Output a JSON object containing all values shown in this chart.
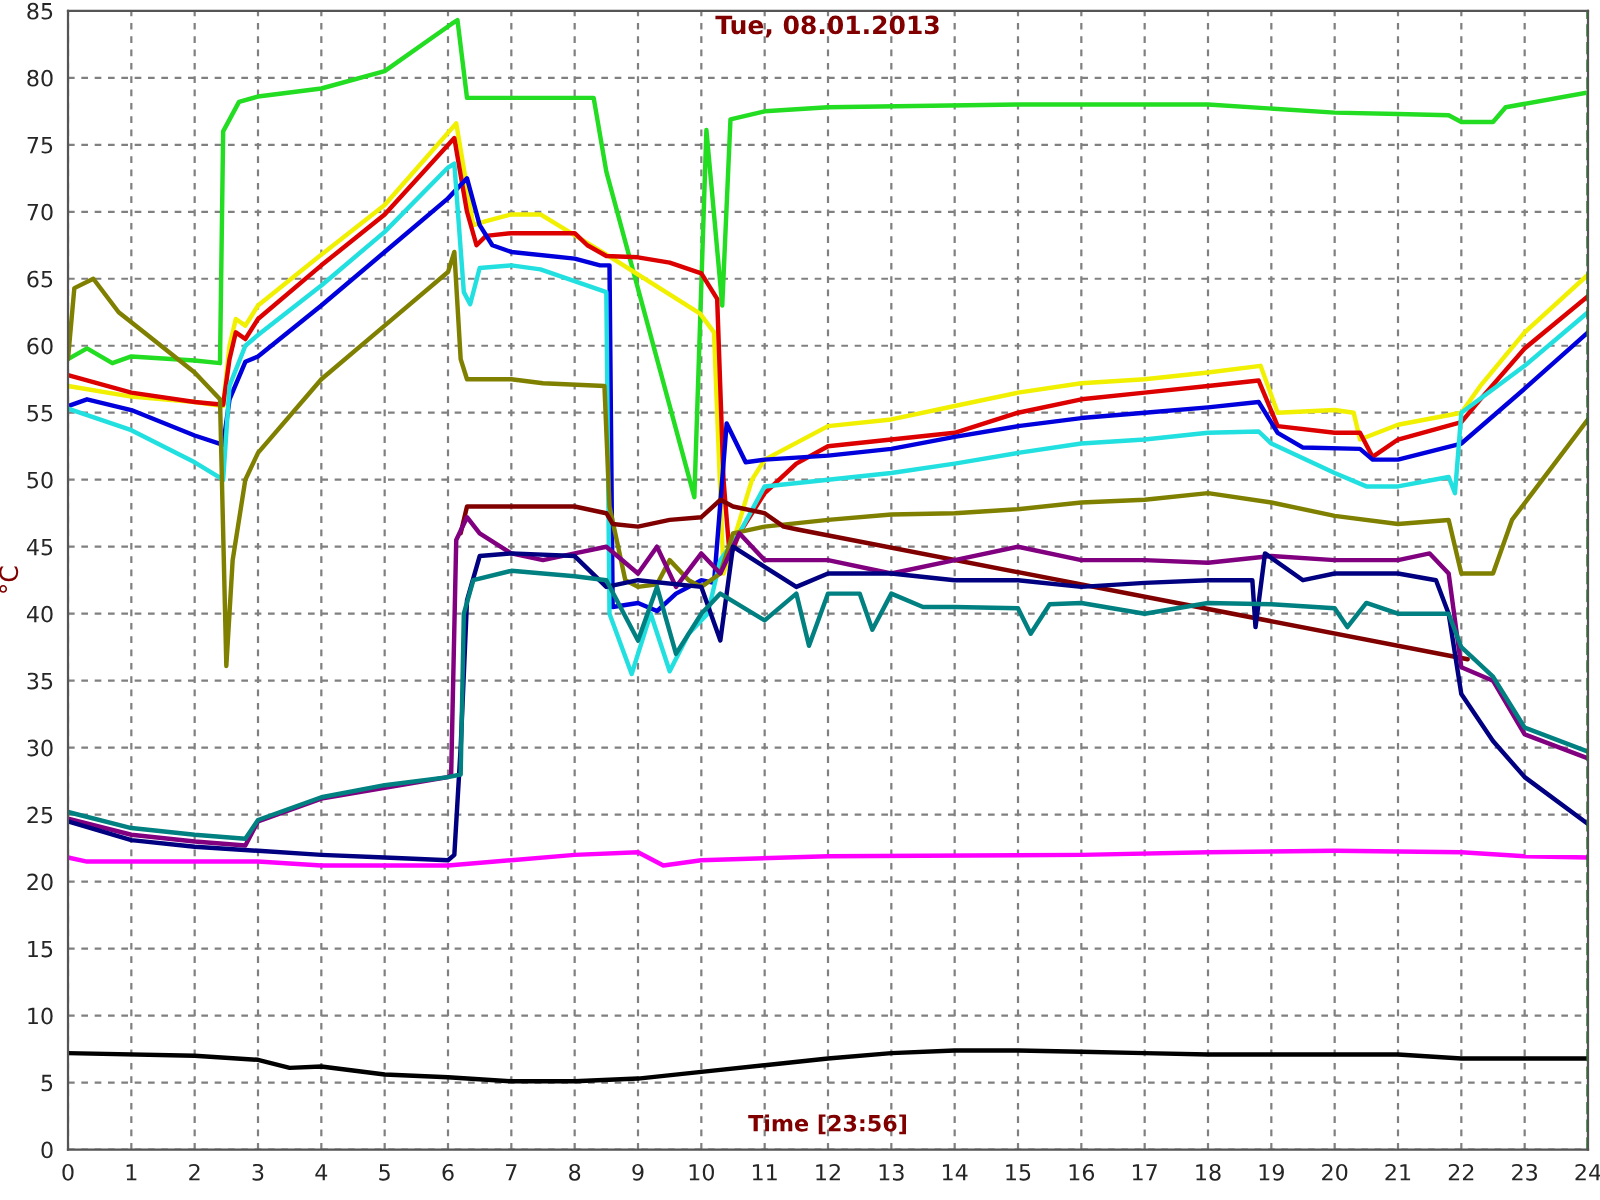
{
  "chart_data": {
    "type": "line",
    "title": "Tue, 08.01.2013",
    "xlabel": "Time [23:56]",
    "ylabel": "°C",
    "xlim": [
      0,
      24
    ],
    "ylim": [
      0,
      85
    ],
    "xticks": [
      0,
      1,
      2,
      3,
      4,
      5,
      6,
      7,
      8,
      9,
      10,
      11,
      12,
      13,
      14,
      15,
      16,
      17,
      18,
      19,
      20,
      21,
      22,
      23,
      24
    ],
    "yticks": [
      0,
      5,
      10,
      15,
      20,
      25,
      30,
      35,
      40,
      45,
      50,
      55,
      60,
      65,
      70,
      75,
      80,
      85
    ],
    "grid": true,
    "legend": false,
    "marker": "none",
    "line_style": "solid",
    "ref_lines": [
      {
        "axis": "x",
        "value": 24,
        "color": "#008000",
        "line_style": "dashed"
      }
    ],
    "series": [
      {
        "color": "#22dd22",
        "x": [
          0,
          0.3,
          0.7,
          1,
          2,
          2.4,
          2.45,
          2.7,
          3,
          4,
          5,
          6.05,
          6.15,
          6.3,
          8.3,
          8.5,
          9.89,
          10.08,
          10.33,
          10.46,
          11,
          12,
          15,
          18,
          20,
          21,
          21.8,
          22,
          22.5,
          22.7,
          24
        ],
        "values": [
          59,
          59.8,
          58.7,
          59.2,
          58.9,
          58.7,
          76,
          78.2,
          78.6,
          79.2,
          80.5,
          84,
          84.3,
          78.5,
          78.5,
          73,
          48.7,
          76.1,
          63,
          76.9,
          77.5,
          77.8,
          78,
          78,
          77.4,
          77.3,
          77.2,
          76.7,
          76.7,
          77.8,
          78.9
        ]
      },
      {
        "color": "#f0f000",
        "x": [
          0,
          1,
          2,
          2.45,
          2.55,
          2.65,
          2.8,
          3,
          4,
          5,
          6.13,
          6.4,
          6.6,
          7,
          7.46,
          8.47,
          9.98,
          10.2,
          10.35,
          10.8,
          11,
          12,
          13,
          14,
          15,
          16,
          17,
          18,
          18.83,
          19.1,
          20,
          20.3,
          20.4,
          21,
          22,
          22.3,
          23,
          24
        ],
        "values": [
          57,
          56.2,
          55.8,
          55.5,
          60,
          62,
          61.5,
          63,
          66.8,
          70.5,
          76.6,
          69,
          69.3,
          69.8,
          69.8,
          66.9,
          62.4,
          61,
          43,
          50,
          51.5,
          54,
          54.5,
          55.5,
          56.5,
          57.2,
          57.5,
          58,
          58.5,
          55,
          55.2,
          55,
          53,
          54.1,
          55,
          57,
          61,
          65.3
        ]
      },
      {
        "color": "#dd0000",
        "x": [
          0,
          1,
          2,
          2.45,
          2.55,
          2.65,
          2.8,
          3,
          4,
          5,
          6.1,
          6.3,
          6.45,
          6.6,
          7,
          8,
          8.2,
          8.5,
          9,
          9.5,
          10,
          10.25,
          10.35,
          10.45,
          10.6,
          11,
          11.5,
          12,
          13,
          14,
          15,
          16,
          17,
          18,
          18.8,
          19.1,
          20,
          20.4,
          20.6,
          21,
          22,
          22.3,
          23,
          24
        ],
        "values": [
          57.8,
          56.5,
          55.8,
          55.6,
          59,
          61,
          60.5,
          62,
          66,
          69.8,
          75.5,
          70,
          67.5,
          68.2,
          68.4,
          68.4,
          67.5,
          66.7,
          66.6,
          66.2,
          65.4,
          63.5,
          50,
          44.2,
          46,
          49,
          51.2,
          52.5,
          53,
          53.5,
          55,
          56,
          56.5,
          57,
          57.4,
          54,
          53.5,
          53.5,
          51.7,
          53,
          54.3,
          56,
          59.8,
          63.7
        ]
      },
      {
        "color": "#0000dd",
        "x": [
          0,
          0.3,
          1,
          2,
          2.45,
          2.55,
          2.8,
          3,
          4,
          5,
          6,
          6.3,
          6.5,
          6.7,
          7,
          8,
          8.4,
          8.55,
          8.6,
          9,
          9.3,
          9.6,
          10,
          10.2,
          10.4,
          10.7,
          11,
          12,
          13,
          14,
          15,
          16,
          17,
          18,
          18.8,
          19.1,
          19.5,
          20.4,
          20.6,
          21,
          22,
          23,
          24
        ],
        "values": [
          55.5,
          56,
          55.2,
          53.3,
          52.6,
          56,
          58.8,
          59.2,
          63,
          67,
          71,
          72.5,
          69,
          67.5,
          67,
          66.5,
          66,
          66,
          40.5,
          40.8,
          40.2,
          41.5,
          42.5,
          42.3,
          54.2,
          51.3,
          51.5,
          51.8,
          52.3,
          53.2,
          54,
          54.6,
          55,
          55.4,
          55.8,
          53.5,
          52.4,
          52.3,
          51.5,
          51.5,
          52.7,
          56.8,
          61
        ]
      },
      {
        "color": "#22e0e0",
        "x": [
          0,
          1,
          2,
          2.45,
          2.55,
          2.8,
          3,
          4,
          5,
          6,
          6.1,
          6.25,
          6.35,
          6.5,
          7,
          7.46,
          8.5,
          8.55,
          8.9,
          9.2,
          9.5,
          9.8,
          10.1,
          10.3,
          10.6,
          11,
          12,
          13,
          14,
          15,
          16,
          17,
          18,
          18.8,
          19,
          20,
          20.5,
          21,
          21.8,
          21.9,
          22,
          23,
          24
        ],
        "values": [
          55.3,
          53.7,
          51.3,
          50,
          57,
          60,
          60.8,
          64.5,
          68.5,
          73.3,
          73.6,
          64,
          63.1,
          65.8,
          66,
          65.7,
          64,
          40,
          35.5,
          40,
          35.7,
          38.5,
          40,
          44,
          46,
          49.5,
          50,
          50.5,
          51.2,
          52,
          52.7,
          53,
          53.5,
          53.6,
          52.7,
          50.5,
          49.5,
          49.5,
          50.2,
          49,
          55,
          58.5,
          62.5
        ]
      },
      {
        "color": "#808000",
        "x": [
          0,
          0.1,
          0.4,
          0.8,
          1.2,
          2,
          2.4,
          2.5,
          2.6,
          2.8,
          3,
          4,
          5,
          6,
          6.1,
          6.2,
          6.3,
          7,
          7.5,
          8.47,
          8.55,
          8.8,
          9,
          9.3,
          9.5,
          9.8,
          10,
          10.3,
          10.5,
          11,
          12,
          13,
          14,
          15,
          16,
          17,
          18,
          19,
          20,
          21,
          21.8,
          22,
          22.5,
          22.8,
          24
        ],
        "values": [
          59,
          64.3,
          65,
          62.5,
          61,
          58,
          56,
          36.1,
          44,
          50,
          52,
          57.5,
          61.5,
          65.5,
          67,
          59,
          57.5,
          57.5,
          57.2,
          57,
          48,
          42.5,
          42,
          42.2,
          44,
          42.5,
          42,
          43,
          46,
          46.5,
          47,
          47.4,
          47.5,
          47.8,
          48.3,
          48.5,
          49,
          48.3,
          47.3,
          46.7,
          47,
          43,
          43,
          47,
          54.5
        ]
      },
      {
        "color": "#800000",
        "x": [
          6.2,
          6.3,
          7,
          8,
          8.5,
          8.6,
          9,
          9.5,
          10,
          10.3,
          10.5,
          11,
          11.3,
          11.5,
          22.1
        ],
        "values": [
          46,
          48,
          48,
          48,
          47.5,
          46.7,
          46.5,
          47,
          47.2,
          48.5,
          48,
          47.5,
          46.5,
          46.3,
          36.6
        ]
      },
      {
        "color": "#800080",
        "x": [
          0,
          1,
          2,
          2.8,
          3,
          4,
          5,
          6,
          6.05,
          6.13,
          6.3,
          6.5,
          7,
          7.5,
          8,
          8.5,
          9,
          9.3,
          9.6,
          10,
          10.3,
          10.6,
          11,
          12,
          13,
          14,
          15,
          16,
          17,
          18,
          19,
          20,
          21,
          21.5,
          21.8,
          22,
          22.5,
          23,
          24
        ],
        "values": [
          24.7,
          23.5,
          23,
          22.7,
          24.5,
          26.2,
          27,
          27.8,
          28,
          45.5,
          47.2,
          46,
          44.5,
          44,
          44.5,
          45,
          43,
          45,
          42,
          44.5,
          43,
          46,
          44,
          44,
          43,
          44,
          45,
          44,
          44,
          43.8,
          44.3,
          44,
          44,
          44.5,
          43,
          36,
          35,
          31,
          29.2
        ]
      },
      {
        "color": "#000080",
        "x": [
          0,
          1,
          2,
          3,
          4,
          5,
          6,
          6.1,
          6.2,
          6.3,
          6.5,
          7,
          8,
          8.5,
          9,
          10,
          10.3,
          10.5,
          11,
          11.5,
          12,
          13,
          14,
          15,
          16,
          17,
          18,
          18.7,
          18.75,
          18.9,
          19.5,
          20,
          21,
          21.6,
          21.8,
          22,
          22.5,
          23,
          24
        ],
        "values": [
          24.5,
          23.1,
          22.6,
          22.3,
          22,
          21.8,
          21.6,
          22,
          30,
          41,
          44.3,
          44.5,
          44.3,
          42,
          42.5,
          42,
          38,
          45,
          43.5,
          42,
          43,
          43,
          42.5,
          42.5,
          42,
          42.3,
          42.5,
          42.5,
          39,
          44.5,
          42.5,
          43,
          43,
          42.5,
          40,
          34,
          30.5,
          27.8,
          24.3
        ]
      },
      {
        "color": "#008080",
        "x": [
          0,
          1,
          2,
          2.8,
          3,
          4,
          5,
          6,
          6.2,
          6.25,
          6.4,
          7,
          8,
          8.5,
          9,
          9.3,
          9.6,
          10,
          10.3,
          11,
          11.5,
          11.7,
          12,
          12.5,
          12.7,
          13,
          13.5,
          14,
          15,
          15.2,
          15.5,
          16,
          17,
          18,
          19,
          20,
          20.2,
          20.5,
          21,
          21.8,
          22,
          22.5,
          23,
          24
        ],
        "values": [
          25.2,
          24,
          23.5,
          23.2,
          24.6,
          26.3,
          27.2,
          27.8,
          28,
          40,
          42.5,
          43.2,
          42.8,
          42.5,
          38,
          42,
          37,
          40,
          41.5,
          39.5,
          41.5,
          37.6,
          41.5,
          41.5,
          38.8,
          41.5,
          40.5,
          40.5,
          40.4,
          38.5,
          40.7,
          40.8,
          40,
          40.8,
          40.7,
          40.4,
          39,
          40.8,
          40,
          40,
          37.5,
          35.3,
          31.5,
          29.7
        ]
      },
      {
        "color": "#ff00ff",
        "x": [
          0,
          0.3,
          3,
          4,
          6,
          7,
          8,
          9,
          9.4,
          10,
          12,
          16,
          18,
          20,
          22,
          23,
          24
        ],
        "values": [
          21.8,
          21.5,
          21.5,
          21.2,
          21.2,
          21.6,
          22,
          22.2,
          21.2,
          21.6,
          21.9,
          22,
          22.2,
          22.3,
          22.2,
          21.9,
          21.8
        ]
      },
      {
        "color": "#000000",
        "x": [
          0,
          2,
          3,
          3.5,
          4,
          5,
          6,
          7,
          8,
          9,
          10,
          11,
          12,
          13,
          14,
          15,
          16,
          17,
          18,
          20,
          21,
          22,
          24
        ],
        "values": [
          7.2,
          7,
          6.7,
          6.1,
          6.2,
          5.6,
          5.4,
          5.1,
          5.1,
          5.3,
          5.8,
          6.3,
          6.8,
          7.2,
          7.4,
          7.4,
          7.3,
          7.2,
          7.1,
          7.1,
          7.1,
          6.8,
          6.8
        ]
      }
    ]
  }
}
